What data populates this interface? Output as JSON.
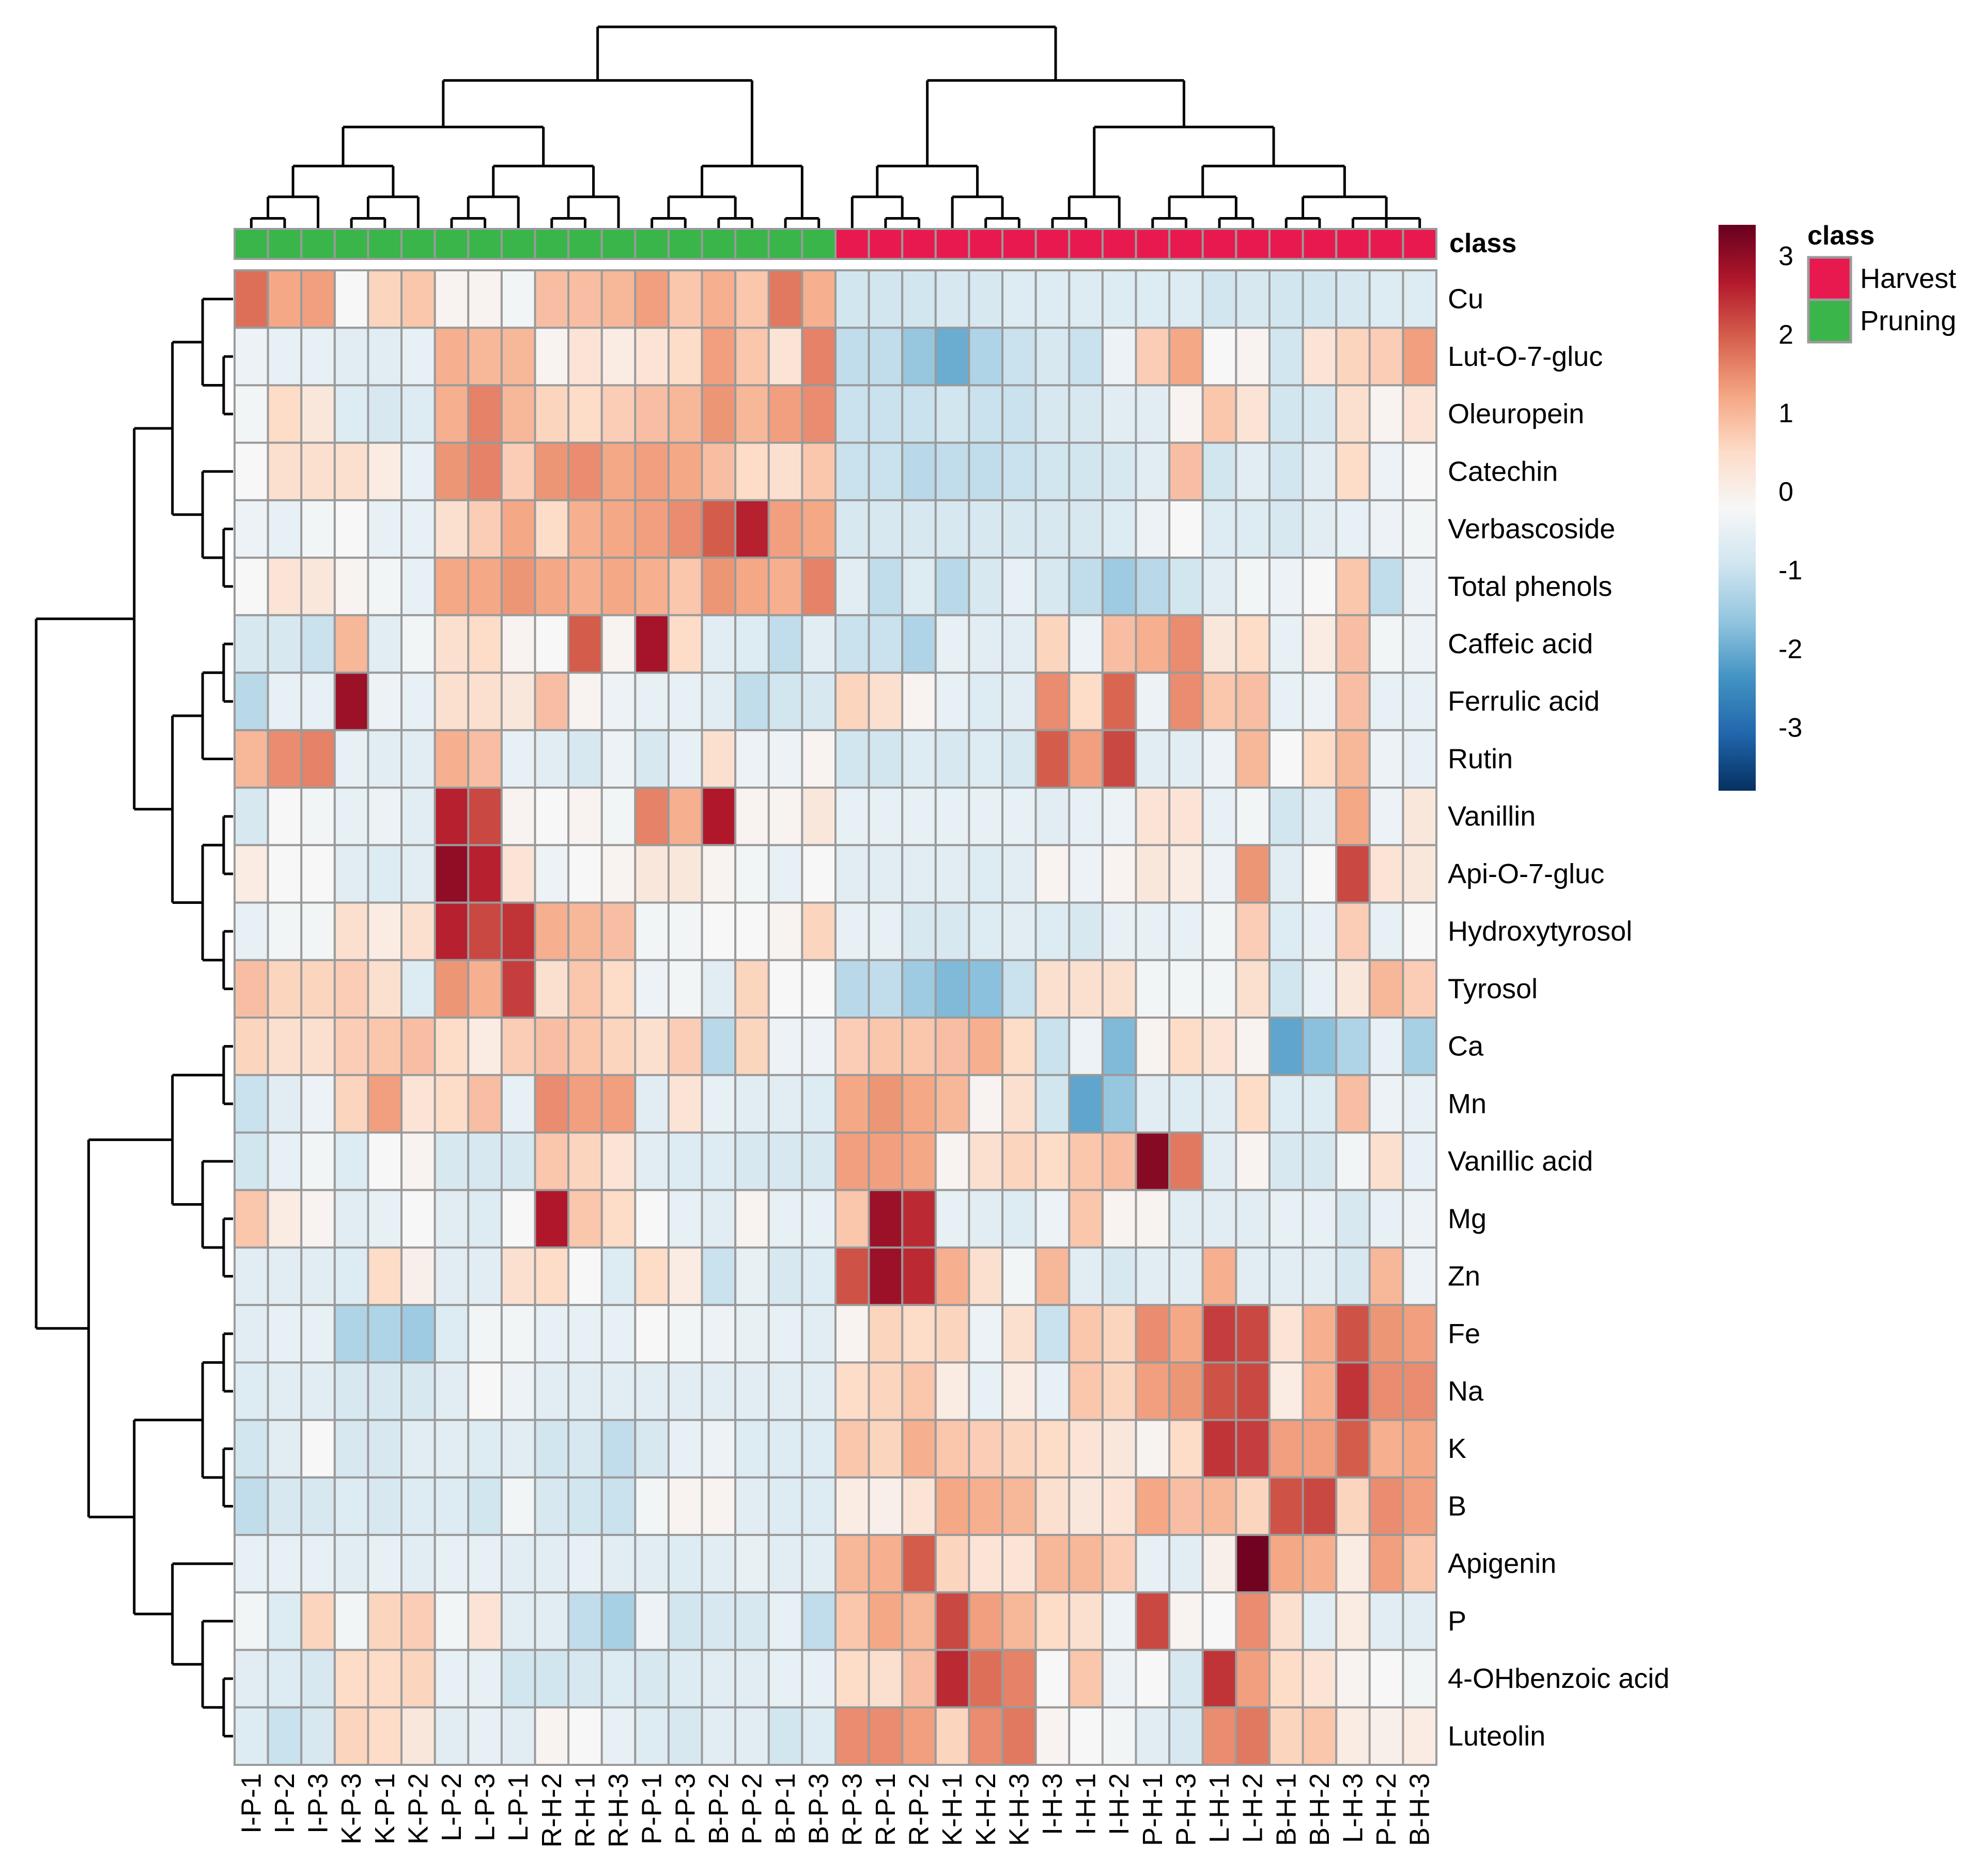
{
  "chart_data": {
    "type": "heatmap",
    "title": "",
    "columns": [
      "I-P-1",
      "I-P-2",
      "I-P-3",
      "K-P-3",
      "K-P-1",
      "K-P-2",
      "L-P-2",
      "L-P-3",
      "L-P-1",
      "R-H-2",
      "R-H-1",
      "R-H-3",
      "P-P-1",
      "P-P-3",
      "B-P-2",
      "P-P-2",
      "B-P-1",
      "B-P-3",
      "R-P-3",
      "R-P-1",
      "R-P-2",
      "K-H-1",
      "K-H-2",
      "K-H-3",
      "I-H-3",
      "I-H-1",
      "I-H-2",
      "P-H-1",
      "P-H-3",
      "L-H-1",
      "L-H-2",
      "B-H-1",
      "B-H-2",
      "L-H-3",
      "P-H-2",
      "B-H-3"
    ],
    "rows": [
      "Cu",
      "Lut-O-7-gluc",
      "Oleuropein",
      "Catechin",
      "Verbascoside",
      "Total phenols",
      "Caffeic acid",
      "Ferrulic acid",
      "Rutin",
      "Vanillin",
      "Api-O-7-gluc",
      "Hydroxytyrosol",
      "Tyrosol",
      "Ca",
      "Mn",
      "Vanillic acid",
      "Mg",
      "Zn",
      "Fe",
      "Na",
      "K",
      "B",
      "Apigenin",
      "P",
      "4-OHbenzoic acid",
      "Luteolin"
    ],
    "column_class": [
      "Pruning",
      "Pruning",
      "Pruning",
      "Pruning",
      "Pruning",
      "Pruning",
      "Pruning",
      "Pruning",
      "Pruning",
      "Pruning",
      "Pruning",
      "Pruning",
      "Pruning",
      "Pruning",
      "Pruning",
      "Pruning",
      "Pruning",
      "Pruning",
      "Harvest",
      "Harvest",
      "Harvest",
      "Harvest",
      "Harvest",
      "Harvest",
      "Harvest",
      "Harvest",
      "Harvest",
      "Harvest",
      "Harvest",
      "Harvest",
      "Harvest",
      "Harvest",
      "Harvest",
      "Harvest",
      "Harvest",
      "Harvest"
    ],
    "annotation_label": "class",
    "values": [
      [
        1.8,
        1.2,
        1.3,
        -0.2,
        0.6,
        0.8,
        -0.1,
        -0.1,
        -0.3,
        0.9,
        0.9,
        1.0,
        1.3,
        0.8,
        1.1,
        0.8,
        1.7,
        1.1,
        -0.9,
        -0.9,
        -0.9,
        -0.8,
        -0.8,
        -0.7,
        -0.7,
        -0.7,
        -0.7,
        -0.7,
        -0.7,
        -0.9,
        -0.8,
        -0.9,
        -0.9,
        -0.8,
        -0.7,
        -0.7
      ],
      [
        -0.4,
        -0.5,
        -0.5,
        -0.6,
        -0.6,
        -0.5,
        1.1,
        1.0,
        1.0,
        -0.1,
        0.3,
        0.1,
        0.3,
        0.5,
        1.3,
        0.8,
        0.3,
        1.6,
        -1.1,
        -1.1,
        -1.6,
        -2.0,
        -1.3,
        -1.0,
        -0.8,
        -1.0,
        -0.4,
        0.7,
        1.2,
        -0.2,
        -0.1,
        -0.9,
        0.3,
        0.6,
        0.7,
        1.3
      ],
      [
        -0.3,
        0.5,
        0.2,
        -0.7,
        -0.8,
        -0.7,
        1.1,
        1.6,
        1.0,
        0.6,
        0.5,
        0.7,
        0.9,
        1.0,
        1.4,
        1.0,
        1.3,
        1.5,
        -1.0,
        -1.0,
        -1.0,
        -0.9,
        -1.0,
        -1.0,
        -0.8,
        -0.8,
        -0.6,
        -0.6,
        -0.1,
        0.8,
        0.3,
        -0.9,
        -0.8,
        0.4,
        -0.1,
        0.3
      ],
      [
        -0.2,
        0.4,
        0.4,
        0.4,
        0.1,
        -0.5,
        1.4,
        1.6,
        0.7,
        1.4,
        1.5,
        1.2,
        1.3,
        1.2,
        0.9,
        0.5,
        0.4,
        0.8,
        -1.0,
        -1.0,
        -1.2,
        -1.1,
        -1.1,
        -1.0,
        -0.9,
        -0.9,
        -0.8,
        -0.6,
        0.9,
        -0.9,
        -0.6,
        -0.9,
        -0.6,
        0.5,
        -0.4,
        -0.2
      ],
      [
        -0.4,
        -0.5,
        -0.3,
        -0.2,
        -0.5,
        -0.5,
        0.4,
        0.7,
        1.2,
        0.5,
        1.1,
        1.2,
        1.3,
        1.5,
        2.0,
        2.6,
        1.3,
        1.2,
        -0.8,
        -0.8,
        -0.8,
        -0.8,
        -0.8,
        -0.8,
        -0.8,
        -0.8,
        -0.7,
        -0.4,
        -0.2,
        -0.7,
        -0.7,
        -0.8,
        -0.6,
        -0.5,
        -0.4,
        -0.3
      ],
      [
        -0.2,
        0.3,
        0.2,
        -0.1,
        -0.3,
        -0.5,
        1.2,
        1.2,
        1.4,
        1.2,
        1.1,
        1.2,
        1.1,
        0.8,
        1.4,
        1.2,
        1.1,
        1.6,
        -0.6,
        -1.1,
        -0.7,
        -1.2,
        -0.8,
        -0.5,
        -0.8,
        -1.1,
        -1.5,
        -1.2,
        -0.9,
        -0.6,
        -0.3,
        -0.4,
        -0.2,
        0.8,
        -1.1,
        -0.4
      ],
      [
        -0.8,
        -0.8,
        -1.0,
        1.0,
        -0.6,
        -0.3,
        0.4,
        0.5,
        -0.1,
        -0.2,
        2.0,
        -0.1,
        2.8,
        0.5,
        -0.6,
        -0.7,
        -1.1,
        -0.6,
        -1.0,
        -1.0,
        -1.3,
        -0.5,
        -0.6,
        -0.6,
        0.6,
        -0.4,
        0.9,
        1.1,
        1.5,
        0.2,
        0.5,
        -0.5,
        0.1,
        0.9,
        -0.3,
        -0.4
      ],
      [
        -1.2,
        -0.5,
        -0.5,
        2.9,
        -0.4,
        -0.5,
        0.4,
        0.4,
        0.2,
        0.9,
        -0.1,
        -0.4,
        -0.5,
        -0.5,
        -0.6,
        -1.1,
        -0.9,
        -0.8,
        0.6,
        0.4,
        -0.1,
        -0.5,
        -0.7,
        -0.6,
        1.5,
        0.5,
        1.9,
        -0.4,
        1.5,
        0.8,
        0.9,
        -0.5,
        -0.4,
        0.9,
        -0.5,
        -0.5
      ],
      [
        1.0,
        1.5,
        1.6,
        -0.5,
        -0.6,
        -0.6,
        1.1,
        0.9,
        -0.5,
        -0.6,
        -0.8,
        -0.4,
        -0.8,
        -0.5,
        0.4,
        -0.4,
        -0.4,
        -0.1,
        -0.9,
        -0.9,
        -0.7,
        -0.8,
        -0.7,
        -0.8,
        2.0,
        1.3,
        2.2,
        -0.6,
        -0.6,
        -0.4,
        1.0,
        -0.2,
        0.5,
        1.0,
        -0.4,
        -0.5
      ],
      [
        -0.8,
        -0.2,
        -0.3,
        -0.5,
        -0.4,
        -0.6,
        2.6,
        2.2,
        -0.1,
        -0.2,
        -0.1,
        -0.3,
        1.6,
        1.1,
        2.7,
        -0.1,
        -0.1,
        0.2,
        -0.5,
        -0.5,
        -0.5,
        -0.5,
        -0.5,
        -0.5,
        -0.6,
        -0.5,
        -0.4,
        0.3,
        0.3,
        -0.5,
        -0.3,
        -0.9,
        -0.6,
        1.2,
        -0.4,
        0.2
      ],
      [
        0.1,
        -0.2,
        -0.2,
        -0.6,
        -0.7,
        -0.6,
        3.0,
        2.6,
        0.3,
        -0.4,
        -0.2,
        -0.1,
        0.2,
        0.2,
        -0.1,
        -0.3,
        -0.5,
        -0.2,
        -0.6,
        -0.6,
        -0.6,
        -0.6,
        -0.7,
        -0.6,
        -0.1,
        -0.4,
        -0.1,
        0.2,
        0.1,
        -0.4,
        1.4,
        -0.6,
        -0.2,
        2.2,
        0.3,
        0.2
      ],
      [
        -0.5,
        -0.3,
        -0.3,
        0.4,
        0.1,
        0.4,
        2.6,
        2.2,
        2.4,
        1.1,
        1.0,
        0.9,
        -0.3,
        -0.3,
        -0.2,
        -0.2,
        -0.1,
        0.6,
        -0.5,
        -0.5,
        -0.8,
        -0.8,
        -0.7,
        -0.6,
        -0.7,
        -0.8,
        -0.5,
        -0.5,
        -0.5,
        -0.3,
        0.7,
        -0.7,
        -0.5,
        0.7,
        -0.5,
        -0.2
      ],
      [
        0.9,
        0.6,
        0.6,
        0.7,
        0.4,
        -0.7,
        1.4,
        1.1,
        2.3,
        0.4,
        0.8,
        0.5,
        -0.4,
        -0.3,
        -0.6,
        0.6,
        -0.2,
        -0.2,
        -1.2,
        -1.1,
        -1.5,
        -1.8,
        -1.7,
        -1.0,
        0.4,
        0.4,
        0.4,
        -0.3,
        -0.3,
        -0.3,
        0.4,
        -0.9,
        -0.5,
        0.2,
        1.0,
        0.7
      ],
      [
        0.6,
        0.4,
        0.4,
        0.7,
        0.8,
        0.9,
        0.5,
        0.1,
        0.7,
        0.9,
        0.8,
        0.6,
        0.4,
        0.7,
        -1.2,
        0.6,
        -0.4,
        -0.4,
        0.7,
        0.8,
        0.8,
        0.9,
        1.1,
        0.5,
        -1.0,
        -0.4,
        -1.8,
        -0.1,
        0.5,
        0.3,
        -0.1,
        -2.1,
        -1.7,
        -1.3,
        -0.5,
        -1.4
      ],
      [
        -1.0,
        -0.6,
        -0.4,
        0.6,
        1.3,
        0.3,
        0.5,
        0.9,
        -0.5,
        1.5,
        1.3,
        1.3,
        -0.6,
        0.3,
        -0.5,
        -0.6,
        -0.6,
        -0.7,
        1.2,
        1.4,
        1.2,
        1.0,
        -0.1,
        0.4,
        -0.9,
        -2.1,
        -1.6,
        -0.6,
        -0.7,
        -0.6,
        0.5,
        -0.7,
        -0.7,
        0.9,
        -0.4,
        -0.5
      ],
      [
        -0.9,
        -0.5,
        -0.3,
        -0.7,
        -0.2,
        -0.1,
        -0.8,
        -0.8,
        -0.8,
        0.8,
        0.6,
        0.3,
        -0.6,
        -0.7,
        -0.7,
        -0.8,
        -0.8,
        -0.8,
        1.3,
        1.3,
        1.2,
        -0.1,
        0.4,
        0.6,
        0.5,
        0.8,
        0.9,
        3.1,
        1.7,
        -0.6,
        -0.1,
        -0.8,
        -0.8,
        -0.3,
        0.4,
        -0.5
      ],
      [
        0.8,
        0.1,
        -0.1,
        -0.6,
        -0.5,
        -0.2,
        -0.6,
        -0.7,
        -0.2,
        2.7,
        0.8,
        0.5,
        -0.2,
        -0.5,
        -0.6,
        -0.1,
        -0.5,
        -0.5,
        0.8,
        2.9,
        2.5,
        -0.5,
        -0.6,
        -0.7,
        -0.4,
        0.8,
        -0.1,
        -0.1,
        -0.6,
        -0.6,
        -0.6,
        -0.5,
        -0.5,
        -0.8,
        -0.5,
        -0.4
      ],
      [
        -0.6,
        -0.6,
        -0.6,
        -0.7,
        0.5,
        0.0,
        -0.6,
        -0.6,
        0.4,
        0.5,
        -0.2,
        -0.7,
        0.5,
        0.1,
        -1.0,
        -0.5,
        -0.8,
        -0.7,
        2.1,
        2.9,
        2.5,
        1.1,
        0.4,
        -0.3,
        1.0,
        -0.6,
        -0.8,
        -0.6,
        -0.6,
        1.1,
        -0.6,
        -0.6,
        -0.6,
        -0.8,
        1.0,
        -0.4
      ],
      [
        -0.6,
        -0.5,
        -0.5,
        -1.3,
        -1.3,
        -1.5,
        -0.7,
        -0.3,
        -0.3,
        -0.5,
        -0.5,
        -0.5,
        -0.2,
        -0.3,
        -0.4,
        -0.5,
        -0.5,
        -0.6,
        -0.1,
        0.6,
        0.5,
        0.6,
        -0.4,
        0.4,
        -1.0,
        0.8,
        0.6,
        1.5,
        1.2,
        2.3,
        2.2,
        0.3,
        1.1,
        2.1,
        1.4,
        1.3
      ],
      [
        -0.7,
        -0.6,
        -0.6,
        -0.8,
        -0.8,
        -0.8,
        -0.6,
        -0.2,
        -0.4,
        -0.6,
        -0.6,
        -0.6,
        -0.6,
        -0.6,
        -0.6,
        -0.6,
        -0.6,
        -0.6,
        0.5,
        0.6,
        0.8,
        0.1,
        -0.5,
        0.1,
        -0.5,
        0.8,
        0.6,
        1.3,
        1.4,
        2.1,
        2.2,
        0.1,
        1.1,
        2.4,
        1.5,
        1.5
      ],
      [
        -0.9,
        -0.6,
        -0.2,
        -0.8,
        -0.8,
        -0.6,
        -0.6,
        -0.7,
        -0.6,
        -0.9,
        -0.8,
        -1.1,
        -0.8,
        -0.5,
        -0.4,
        -0.7,
        -0.7,
        -0.7,
        0.8,
        0.6,
        1.1,
        0.8,
        0.7,
        0.6,
        0.5,
        0.3,
        0.2,
        -0.1,
        0.5,
        2.4,
        2.3,
        1.3,
        1.3,
        2.0,
        1.1,
        1.2
      ],
      [
        -1.1,
        -0.8,
        -0.8,
        -0.7,
        -0.8,
        -0.7,
        -0.7,
        -0.9,
        -0.3,
        -0.8,
        -0.9,
        -1.0,
        -0.3,
        -0.1,
        -0.1,
        -0.6,
        -0.7,
        -0.7,
        0.1,
        0.0,
        0.3,
        1.2,
        1.1,
        1.0,
        0.4,
        0.2,
        0.3,
        1.2,
        0.9,
        1.0,
        0.6,
        2.1,
        2.2,
        0.6,
        1.5,
        1.3
      ],
      [
        -0.5,
        -0.5,
        -0.5,
        -0.6,
        -0.5,
        -0.6,
        -0.5,
        -0.5,
        -0.6,
        -0.6,
        -0.5,
        -0.6,
        -0.6,
        -0.7,
        -0.6,
        -0.5,
        -0.6,
        -0.6,
        1.0,
        1.1,
        2.0,
        0.6,
        0.3,
        0.3,
        1.0,
        1.0,
        0.7,
        -0.5,
        -0.6,
        0.0,
        3.3,
        1.2,
        1.1,
        0.1,
        1.3,
        0.8
      ],
      [
        -0.3,
        -0.7,
        0.6,
        -0.3,
        0.6,
        0.7,
        -0.3,
        0.3,
        -0.6,
        -0.6,
        -1.1,
        -1.4,
        -0.4,
        -0.9,
        -0.8,
        -0.8,
        -0.5,
        -1.1,
        0.8,
        1.2,
        1.0,
        2.2,
        1.3,
        1.0,
        0.5,
        0.4,
        -0.4,
        2.2,
        -0.1,
        -0.2,
        1.5,
        0.4,
        -0.6,
        0.1,
        -0.6,
        -0.6
      ],
      [
        -0.6,
        -0.7,
        -0.8,
        0.5,
        0.5,
        0.6,
        -0.5,
        -0.5,
        -0.9,
        -0.9,
        -0.8,
        -0.7,
        -0.8,
        -0.7,
        -0.6,
        -0.6,
        -0.5,
        -0.5,
        0.5,
        0.4,
        0.9,
        2.5,
        1.8,
        1.6,
        -0.2,
        0.8,
        -0.4,
        -0.2,
        -0.8,
        2.4,
        1.3,
        0.5,
        0.3,
        -0.1,
        -0.2,
        -0.3
      ],
      [
        -0.7,
        -1.0,
        -0.8,
        0.6,
        0.5,
        0.2,
        -0.6,
        -0.5,
        -0.6,
        -0.1,
        -0.2,
        -0.5,
        -0.7,
        -0.8,
        -0.6,
        -0.6,
        -0.9,
        -0.7,
        1.5,
        1.5,
        1.3,
        0.6,
        1.5,
        1.7,
        -0.1,
        -0.2,
        -0.3,
        -0.6,
        -0.8,
        1.5,
        1.7,
        0.6,
        0.8,
        0.1,
        0.0,
        0.1
      ]
    ],
    "scale": {
      "min": -3.8,
      "max": 3.4,
      "ticks": [
        3,
        2,
        1,
        0,
        -1,
        -2,
        -3
      ],
      "colors": [
        "#053061",
        "#2166AC",
        "#4393C3",
        "#92C5DE",
        "#D1E5F0",
        "#F7F7F7",
        "#FDDBC7",
        "#F4A582",
        "#D6604D",
        "#B2182B",
        "#67001F"
      ]
    },
    "legend": {
      "title": "class",
      "items": [
        {
          "label": "Harvest",
          "color": "#E8194F"
        },
        {
          "label": "Pruning",
          "color": "#39B54A"
        }
      ],
      "position": "right"
    },
    "grid": true
  }
}
